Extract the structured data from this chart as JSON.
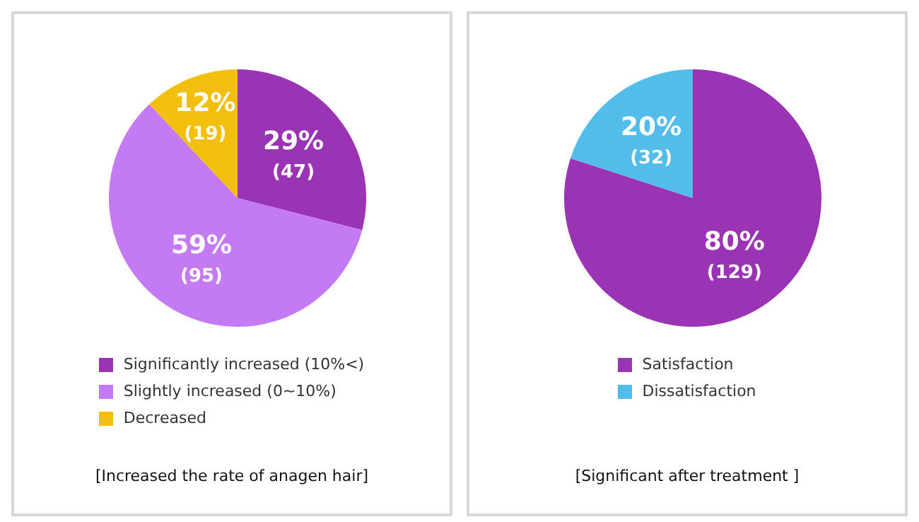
{
  "chart_data": [
    {
      "type": "pie",
      "title": "[Increased the rate of anagen hair]",
      "categories": [
        "Significantly increased (10%<)",
        "Slightly increased (0~10%)",
        "Decreased"
      ],
      "values": [
        29,
        59,
        12
      ],
      "value_labels": [
        "29% (47)",
        "59% (95)",
        "12% (19)"
      ],
      "colors": [
        "#9a34b5",
        "#c47af2",
        "#f2bf0c"
      ],
      "legend": "bottom"
    },
    {
      "type": "pie",
      "title": "[Significant after treatment ]",
      "categories": [
        "Satisfaction",
        "Dissatisfaction"
      ],
      "values": [
        80,
        20
      ],
      "value_labels": [
        "80% (129)",
        "20% (32)"
      ],
      "colors": [
        "#9a34b5",
        "#52bdea"
      ],
      "legend": "bottom"
    }
  ]
}
